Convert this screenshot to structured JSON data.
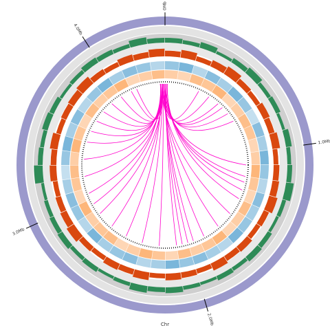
{
  "chart_data": {
    "type": "circos",
    "axis_label": "Chr",
    "xlim": [
      0,
      4.4
    ],
    "xticks": [
      {
        "value": 0,
        "label": "0Mb"
      },
      {
        "value": 1,
        "label": "1.0Mb"
      },
      {
        "value": 2,
        "label": "2.0Mb"
      },
      {
        "value": 3,
        "label": "3.0Mb"
      },
      {
        "value": 4,
        "label": "4.0Mb"
      }
    ],
    "x": [
      0,
      0.1,
      0.2,
      0.3,
      0.4,
      0.5,
      0.6,
      0.7,
      0.8,
      0.9,
      1.0,
      1.1,
      1.2,
      1.3,
      1.4,
      1.5,
      1.6,
      1.7,
      1.8,
      1.9,
      2.0,
      2.1,
      2.2,
      2.3,
      2.4,
      2.5,
      2.6,
      2.7,
      2.8,
      2.9,
      3.0,
      3.1,
      3.2,
      3.3,
      3.4,
      3.5,
      3.6,
      3.7,
      3.8,
      3.9,
      4.0,
      4.1,
      4.2,
      4.3
    ],
    "series": [
      {
        "style": "bar",
        "color": "#2e8b57",
        "ylim": [
          0,
          1
        ],
        "values": [
          0.5,
          0.4,
          0.6,
          0.3,
          0.5,
          0.7,
          0.4,
          0.5,
          0.3,
          0.6,
          0.4,
          0.5,
          0.8,
          0.4,
          0.3,
          0.5,
          0.6,
          0.4,
          0.5,
          0.3,
          0.4,
          0.6,
          0.5,
          0.7,
          0.4,
          0.3,
          0.5,
          0.4,
          0.6,
          0.5,
          0.4,
          0.3,
          0.9,
          0.5,
          0.4,
          0.6,
          0.5,
          0.3,
          0.4,
          0.6,
          0.5,
          0.4,
          0.7,
          0.5
        ]
      },
      {
        "style": "bar",
        "color": "#d9480f",
        "ylim": [
          0,
          1
        ],
        "values": [
          0.6,
          0.8,
          0.5,
          0.7,
          0.9,
          0.6,
          0.5,
          0.7,
          0.6,
          0.8,
          0.5,
          0.6,
          0.7,
          0.9,
          0.6,
          0.5,
          0.7,
          0.6,
          0.8,
          0.5,
          0.6,
          0.7,
          0.5,
          0.8,
          0.6,
          0.7,
          0.5,
          0.6,
          0.9,
          0.7,
          0.6,
          0.5,
          0.7,
          0.6,
          0.8,
          0.5,
          0.6,
          0.7,
          0.9,
          0.6,
          0.5,
          0.7,
          0.6,
          0.8
        ]
      },
      {
        "style": "tile",
        "color": "#6baed6",
        "ylim": [
          0,
          1
        ],
        "values": [
          0.7,
          0.9,
          0.5,
          0.8,
          0.6,
          0.9,
          0.7,
          0.4,
          0.8,
          0.6,
          0.9,
          0.7,
          0.5,
          0.8,
          0.6,
          0.7,
          0.9,
          0.5,
          0.6,
          0.8,
          0.7,
          0.9,
          0.6,
          0.5,
          0.8,
          0.7,
          0.6,
          0.9,
          0.5,
          0.7,
          0.8,
          0.6,
          0.4,
          0.7,
          0.9,
          0.6,
          0.8,
          0.5,
          0.7,
          0.9,
          0.6,
          0.8,
          0.7,
          0.5
        ]
      },
      {
        "style": "tile",
        "color": "#fdae6b",
        "ylim": [
          0,
          1
        ],
        "values": [
          0.6,
          0.5,
          0.8,
          0.7,
          0.9,
          0.5,
          0.6,
          0.8,
          0.7,
          0.5,
          0.6,
          0.9,
          0.7,
          0.5,
          0.8,
          0.6,
          0.5,
          0.9,
          0.7,
          0.6,
          0.8,
          0.5,
          0.7,
          0.9,
          0.6,
          0.5,
          0.8,
          0.7,
          0.6,
          0.9,
          0.5,
          0.7,
          0.8,
          0.6,
          0.9,
          0.7,
          0.5,
          0.8,
          0.6,
          0.7,
          0.9,
          0.5,
          0.6,
          0.8
        ]
      }
    ],
    "links": {
      "color": "#ff00cc",
      "pairs": [
        [
          4.37,
          0.3
        ],
        [
          4.38,
          0.4
        ],
        [
          4.38,
          0.5
        ],
        [
          4.39,
          0.55
        ],
        [
          4.39,
          0.62
        ],
        [
          0.0,
          0.7
        ],
        [
          0.0,
          1.1
        ],
        [
          0.01,
          1.2
        ],
        [
          0.01,
          1.25
        ],
        [
          0.02,
          1.32
        ],
        [
          0.02,
          1.4
        ],
        [
          4.37,
          1.55
        ],
        [
          4.38,
          1.7
        ],
        [
          4.39,
          1.85
        ],
        [
          4.39,
          1.95
        ],
        [
          0.0,
          2.0
        ],
        [
          0.0,
          2.05
        ],
        [
          0.01,
          2.1
        ],
        [
          4.38,
          2.25
        ],
        [
          4.37,
          2.4
        ],
        [
          4.36,
          2.55
        ],
        [
          4.37,
          2.7
        ],
        [
          4.38,
          2.85
        ],
        [
          4.36,
          2.95
        ],
        [
          4.37,
          3.05
        ],
        [
          4.38,
          3.2
        ],
        [
          4.36,
          3.35
        ],
        [
          4.37,
          3.5
        ],
        [
          4.38,
          3.6
        ],
        [
          4.37,
          3.7
        ],
        [
          4.36,
          3.8
        ],
        [
          4.38,
          3.9
        ],
        [
          4.37,
          4.0
        ],
        [
          4.36,
          4.1
        ],
        [
          4.38,
          4.15
        ]
      ]
    }
  }
}
